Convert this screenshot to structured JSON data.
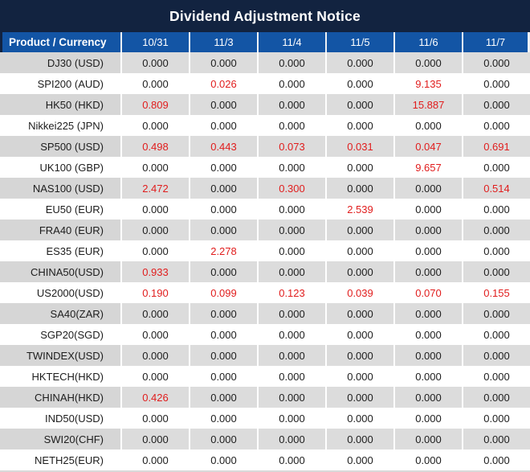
{
  "title": "Dividend Adjustment Notice",
  "table": {
    "header": {
      "product_column": "Product / Currency",
      "dates": [
        "10/31",
        "11/3",
        "11/4",
        "11/5",
        "11/6",
        "11/7"
      ]
    },
    "rows": [
      {
        "product": "DJ30 (USD)",
        "values": [
          "0.000",
          "0.000",
          "0.000",
          "0.000",
          "0.000",
          "0.000"
        ]
      },
      {
        "product": "SPI200 (AUD)",
        "values": [
          "0.000",
          "0.026",
          "0.000",
          "0.000",
          "9.135",
          "0.000"
        ]
      },
      {
        "product": "HK50 (HKD)",
        "values": [
          "0.809",
          "0.000",
          "0.000",
          "0.000",
          "15.887",
          "0.000"
        ]
      },
      {
        "product": "Nikkei225 (JPN)",
        "values": [
          "0.000",
          "0.000",
          "0.000",
          "0.000",
          "0.000",
          "0.000"
        ]
      },
      {
        "product": "SP500 (USD)",
        "values": [
          "0.498",
          "0.443",
          "0.073",
          "0.031",
          "0.047",
          "0.691"
        ]
      },
      {
        "product": "UK100 (GBP)",
        "values": [
          "0.000",
          "0.000",
          "0.000",
          "0.000",
          "9.657",
          "0.000"
        ]
      },
      {
        "product": "NAS100 (USD)",
        "values": [
          "2.472",
          "0.000",
          "0.300",
          "0.000",
          "0.000",
          "0.514"
        ]
      },
      {
        "product": "EU50 (EUR)",
        "values": [
          "0.000",
          "0.000",
          "0.000",
          "2.539",
          "0.000",
          "0.000"
        ]
      },
      {
        "product": "FRA40 (EUR)",
        "values": [
          "0.000",
          "0.000",
          "0.000",
          "0.000",
          "0.000",
          "0.000"
        ]
      },
      {
        "product": "ES35 (EUR)",
        "values": [
          "0.000",
          "2.278",
          "0.000",
          "0.000",
          "0.000",
          "0.000"
        ]
      },
      {
        "product": "CHINA50(USD)",
        "values": [
          "0.933",
          "0.000",
          "0.000",
          "0.000",
          "0.000",
          "0.000"
        ]
      },
      {
        "product": "US2000(USD)",
        "values": [
          "0.190",
          "0.099",
          "0.123",
          "0.039",
          "0.070",
          "0.155"
        ]
      },
      {
        "product": "SA40(ZAR)",
        "values": [
          "0.000",
          "0.000",
          "0.000",
          "0.000",
          "0.000",
          "0.000"
        ]
      },
      {
        "product": "SGP20(SGD)",
        "values": [
          "0.000",
          "0.000",
          "0.000",
          "0.000",
          "0.000",
          "0.000"
        ]
      },
      {
        "product": "TWINDEX(USD)",
        "values": [
          "0.000",
          "0.000",
          "0.000",
          "0.000",
          "0.000",
          "0.000"
        ]
      },
      {
        "product": "HKTECH(HKD)",
        "values": [
          "0.000",
          "0.000",
          "0.000",
          "0.000",
          "0.000",
          "0.000"
        ]
      },
      {
        "product": "CHINAH(HKD)",
        "values": [
          "0.426",
          "0.000",
          "0.000",
          "0.000",
          "0.000",
          "0.000"
        ]
      },
      {
        "product": "IND50(USD)",
        "values": [
          "0.000",
          "0.000",
          "0.000",
          "0.000",
          "0.000",
          "0.000"
        ]
      },
      {
        "product": "SWI20(CHF)",
        "values": [
          "0.000",
          "0.000",
          "0.000",
          "0.000",
          "0.000",
          "0.000"
        ]
      },
      {
        "product": "NETH25(EUR)",
        "values": [
          "0.000",
          "0.000",
          "0.000",
          "0.000",
          "0.000",
          "0.000"
        ]
      }
    ]
  },
  "chart_data": {
    "type": "table",
    "title": "Dividend Adjustment Notice",
    "columns": [
      "Product / Currency",
      "10/31",
      "11/3",
      "11/4",
      "11/5",
      "11/6",
      "11/7"
    ],
    "rows": [
      [
        "DJ30 (USD)",
        0.0,
        0.0,
        0.0,
        0.0,
        0.0,
        0.0
      ],
      [
        "SPI200 (AUD)",
        0.0,
        0.026,
        0.0,
        0.0,
        9.135,
        0.0
      ],
      [
        "HK50 (HKD)",
        0.809,
        0.0,
        0.0,
        0.0,
        15.887,
        0.0
      ],
      [
        "Nikkei225 (JPN)",
        0.0,
        0.0,
        0.0,
        0.0,
        0.0,
        0.0
      ],
      [
        "SP500 (USD)",
        0.498,
        0.443,
        0.073,
        0.031,
        0.047,
        0.691
      ],
      [
        "UK100 (GBP)",
        0.0,
        0.0,
        0.0,
        0.0,
        9.657,
        0.0
      ],
      [
        "NAS100 (USD)",
        2.472,
        0.0,
        0.3,
        0.0,
        0.0,
        0.514
      ],
      [
        "EU50 (EUR)",
        0.0,
        0.0,
        0.0,
        2.539,
        0.0,
        0.0
      ],
      [
        "FRA40 (EUR)",
        0.0,
        0.0,
        0.0,
        0.0,
        0.0,
        0.0
      ],
      [
        "ES35 (EUR)",
        0.0,
        2.278,
        0.0,
        0.0,
        0.0,
        0.0
      ],
      [
        "CHINA50(USD)",
        0.933,
        0.0,
        0.0,
        0.0,
        0.0,
        0.0
      ],
      [
        "US2000(USD)",
        0.19,
        0.099,
        0.123,
        0.039,
        0.07,
        0.155
      ],
      [
        "SA40(ZAR)",
        0.0,
        0.0,
        0.0,
        0.0,
        0.0,
        0.0
      ],
      [
        "SGP20(SGD)",
        0.0,
        0.0,
        0.0,
        0.0,
        0.0,
        0.0
      ],
      [
        "TWINDEX(USD)",
        0.0,
        0.0,
        0.0,
        0.0,
        0.0,
        0.0
      ],
      [
        "HKTECH(HKD)",
        0.0,
        0.0,
        0.0,
        0.0,
        0.0,
        0.0
      ],
      [
        "CHINAH(HKD)",
        0.426,
        0.0,
        0.0,
        0.0,
        0.0,
        0.0
      ],
      [
        "IND50(USD)",
        0.0,
        0.0,
        0.0,
        0.0,
        0.0,
        0.0
      ],
      [
        "SWI20(CHF)",
        0.0,
        0.0,
        0.0,
        0.0,
        0.0,
        0.0
      ],
      [
        "NETH25(EUR)",
        0.0,
        0.0,
        0.0,
        0.0,
        0.0,
        0.0
      ]
    ],
    "value_format": "3 decimal places",
    "highlight_rule": "non-zero values rendered in red",
    "layout": "title bar on top, date columns, alternating gray/white rows"
  },
  "colors": {
    "title_bar_bg": "#122340",
    "header_bg": "#1355a5",
    "header_text": "#ffffff",
    "row_alt_bg": "#dcdcdc",
    "label_alt_bg": "#d6d6d6",
    "row_bg": "#ffffff",
    "zero_value_color": "#1d1d1d",
    "nonzero_value_color": "#e11d1d"
  }
}
